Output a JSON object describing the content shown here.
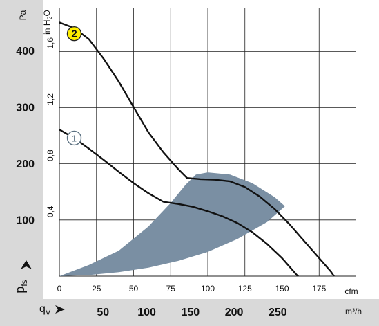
{
  "chart_data": {
    "type": "line",
    "axes": {
      "pressure_pa": {
        "unit": "Pa",
        "ticks": [
          "100",
          "200",
          "300",
          "400"
        ],
        "range": [
          0,
          475
        ]
      },
      "pressure_inh2o": {
        "unit_prefix": "in H",
        "unit_subscript": "2",
        "unit_suffix": "O",
        "ticks": [
          "0,4",
          "0,8",
          "1,2",
          "1,6"
        ]
      },
      "airflow_cfm": {
        "unit": "cfm",
        "ticks": [
          "0",
          "25",
          "50",
          "75",
          "100",
          "125",
          "150",
          "175"
        ],
        "range": [
          0,
          200
        ]
      },
      "airflow_m3h": {
        "unit": "m³/h",
        "ticks": [
          "50",
          "100",
          "150",
          "200",
          "250"
        ]
      },
      "y_symbol": {
        "main": "p",
        "sub": "fs"
      },
      "x_symbol": {
        "main": "q",
        "sub": "V"
      }
    },
    "grid": true,
    "units": {
      "cfm_to_m3h": 1.699
    },
    "operating_region": {
      "color": "#7a8fa3",
      "upper": [
        [
          0,
          0
        ],
        [
          20,
          20
        ],
        [
          40,
          45
        ],
        [
          60,
          88
        ],
        [
          75,
          130
        ],
        [
          85,
          162
        ],
        [
          92,
          180
        ],
        [
          100,
          184
        ],
        [
          115,
          180
        ],
        [
          130,
          165
        ],
        [
          145,
          140
        ],
        [
          152,
          124
        ]
      ],
      "lower": [
        [
          152,
          124
        ],
        [
          140,
          96
        ],
        [
          120,
          66
        ],
        [
          100,
          43
        ],
        [
          80,
          27
        ],
        [
          60,
          15
        ],
        [
          40,
          7
        ],
        [
          20,
          2
        ],
        [
          0,
          0
        ]
      ]
    },
    "series": [
      {
        "name": "2",
        "badge_color": "#ffee00",
        "line_color": "#111111",
        "points": [
          [
            0,
            450
          ],
          [
            10,
            440
          ],
          [
            20,
            420
          ],
          [
            30,
            385
          ],
          [
            40,
            345
          ],
          [
            50,
            300
          ],
          [
            60,
            255
          ],
          [
            70,
            220
          ],
          [
            80,
            190
          ],
          [
            86,
            174
          ],
          [
            95,
            172
          ],
          [
            105,
            171
          ],
          [
            115,
            168
          ],
          [
            125,
            158
          ],
          [
            135,
            141
          ],
          [
            145,
            119
          ],
          [
            155,
            92
          ],
          [
            165,
            62
          ],
          [
            175,
            32
          ],
          [
            183,
            8
          ],
          [
            185,
            0
          ]
        ]
      },
      {
        "name": "1",
        "badge_color": "#ffffff",
        "line_color": "#111111",
        "points": [
          [
            0,
            260
          ],
          [
            10,
            245
          ],
          [
            20,
            226
          ],
          [
            30,
            206
          ],
          [
            40,
            185
          ],
          [
            50,
            165
          ],
          [
            60,
            147
          ],
          [
            70,
            132
          ],
          [
            80,
            128
          ],
          [
            90,
            123
          ],
          [
            100,
            115
          ],
          [
            110,
            106
          ],
          [
            120,
            94
          ],
          [
            130,
            78
          ],
          [
            140,
            57
          ],
          [
            150,
            32
          ],
          [
            160,
            2
          ],
          [
            161,
            0
          ]
        ]
      }
    ]
  }
}
